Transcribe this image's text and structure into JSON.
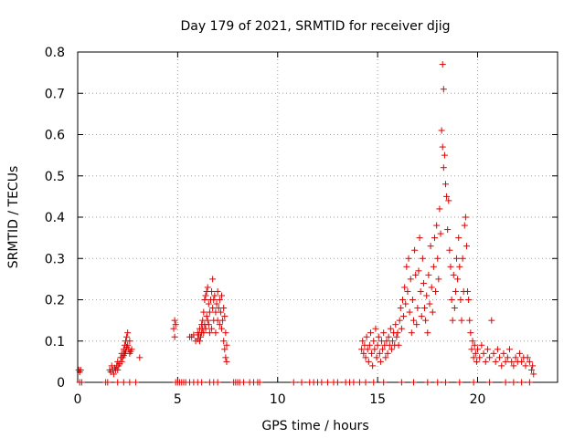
{
  "chart_data": {
    "type": "scatter",
    "title": "Day 179 of 2021, SRMTID for receiver djig",
    "xlabel": "GPS time / hours",
    "ylabel": "SRMTID / TECUs",
    "xlim": [
      0,
      24
    ],
    "ylim": [
      0,
      0.8
    ],
    "grid": true,
    "x_ticks": [
      "0",
      "5",
      "10",
      "15",
      "20"
    ],
    "x_tick_values": [
      0,
      5,
      10,
      15,
      20
    ],
    "y_ticks": [
      "0",
      "0.1",
      "0.2",
      "0.3",
      "0.4",
      "0.5",
      "0.6",
      "0.7",
      "0.8"
    ],
    "y_tick_values": [
      0,
      0.1,
      0.2,
      0.3,
      0.4,
      0.5,
      0.6,
      0.7,
      0.8
    ],
    "marker": "+",
    "color": "#dd0000",
    "series": [
      {
        "name": "SRMTID",
        "points": [
          [
            0.05,
            0.03
          ],
          [
            0.1,
            0.025
          ],
          [
            0.15,
            0.03
          ],
          [
            0.1,
            0.0
          ],
          [
            0.2,
            0.0
          ],
          [
            1.4,
            0.0
          ],
          [
            1.5,
            0.0
          ],
          [
            1.6,
            0.03
          ],
          [
            1.65,
            0.025
          ],
          [
            1.7,
            0.04
          ],
          [
            1.75,
            0.03
          ],
          [
            1.8,
            0.02
          ],
          [
            1.85,
            0.035
          ],
          [
            1.9,
            0.03
          ],
          [
            1.95,
            0.04
          ],
          [
            2.0,
            0.03
          ],
          [
            2.0,
            0.05
          ],
          [
            2.05,
            0.04
          ],
          [
            2.1,
            0.045
          ],
          [
            2.15,
            0.06
          ],
          [
            2.2,
            0.05
          ],
          [
            2.2,
            0.07
          ],
          [
            2.25,
            0.06
          ],
          [
            2.3,
            0.08
          ],
          [
            2.3,
            0.065
          ],
          [
            2.35,
            0.09
          ],
          [
            2.35,
            0.07
          ],
          [
            2.4,
            0.1
          ],
          [
            2.4,
            0.075
          ],
          [
            2.45,
            0.11
          ],
          [
            2.45,
            0.085
          ],
          [
            2.5,
            0.12
          ],
          [
            2.5,
            0.09
          ],
          [
            2.55,
            0.08
          ],
          [
            2.6,
            0.07
          ],
          [
            2.6,
            0.1
          ],
          [
            2.65,
            0.075
          ],
          [
            2.7,
            0.08
          ],
          [
            2.9,
            0.0
          ],
          [
            3.1,
            0.06
          ],
          [
            2.0,
            0.0
          ],
          [
            2.3,
            0.0
          ],
          [
            2.6,
            0.0
          ],
          [
            4.8,
            0.13
          ],
          [
            4.85,
            0.15
          ],
          [
            4.9,
            0.14
          ],
          [
            4.85,
            0.11
          ],
          [
            5.3,
            0.0
          ],
          [
            4.9,
            0.0
          ],
          [
            5.0,
            0.0
          ],
          [
            5.1,
            0.0
          ],
          [
            5.2,
            0.0
          ],
          [
            5.4,
            0.0
          ],
          [
            5.6,
            0.0
          ],
          [
            5.8,
            0.0
          ],
          [
            6.0,
            0.0
          ],
          [
            6.2,
            0.0
          ],
          [
            6.6,
            0.0
          ],
          [
            6.8,
            0.0
          ],
          [
            7.0,
            0.0
          ],
          [
            5.6,
            0.11
          ],
          [
            5.7,
            0.11
          ],
          [
            5.8,
            0.115
          ],
          [
            5.9,
            0.1
          ],
          [
            6.0,
            0.12
          ],
          [
            6.0,
            0.105
          ],
          [
            6.05,
            0.115
          ],
          [
            6.1,
            0.13
          ],
          [
            6.1,
            0.1
          ],
          [
            6.15,
            0.11
          ],
          [
            6.2,
            0.12
          ],
          [
            6.2,
            0.14
          ],
          [
            6.25,
            0.15
          ],
          [
            6.25,
            0.13
          ],
          [
            6.3,
            0.17
          ],
          [
            6.3,
            0.12
          ],
          [
            6.35,
            0.2
          ],
          [
            6.35,
            0.14
          ],
          [
            6.4,
            0.21
          ],
          [
            6.4,
            0.13
          ],
          [
            6.45,
            0.22
          ],
          [
            6.45,
            0.16
          ],
          [
            6.5,
            0.23
          ],
          [
            6.5,
            0.15
          ],
          [
            6.55,
            0.19
          ],
          [
            6.55,
            0.14
          ],
          [
            6.6,
            0.17
          ],
          [
            6.6,
            0.12
          ],
          [
            6.65,
            0.2
          ],
          [
            6.7,
            0.22
          ],
          [
            6.7,
            0.13
          ],
          [
            6.75,
            0.25
          ],
          [
            6.75,
            0.18
          ],
          [
            6.8,
            0.2
          ],
          [
            6.8,
            0.15
          ],
          [
            6.85,
            0.21
          ],
          [
            6.9,
            0.17
          ],
          [
            6.9,
            0.12
          ],
          [
            6.95,
            0.19
          ],
          [
            7.0,
            0.22
          ],
          [
            7.0,
            0.15
          ],
          [
            7.05,
            0.18
          ],
          [
            7.1,
            0.2
          ],
          [
            7.1,
            0.14
          ],
          [
            7.15,
            0.17
          ],
          [
            7.2,
            0.21
          ],
          [
            7.2,
            0.13
          ],
          [
            7.25,
            0.15
          ],
          [
            7.3,
            0.18
          ],
          [
            7.3,
            0.1
          ],
          [
            7.35,
            0.16
          ],
          [
            7.35,
            0.08
          ],
          [
            7.4,
            0.12
          ],
          [
            7.4,
            0.06
          ],
          [
            7.45,
            0.09
          ],
          [
            7.45,
            0.05
          ],
          [
            7.8,
            0.0
          ],
          [
            7.9,
            0.0
          ],
          [
            8.0,
            0.0
          ],
          [
            8.1,
            0.0
          ],
          [
            8.3,
            0.0
          ],
          [
            8.6,
            0.0
          ],
          [
            8.8,
            0.0
          ],
          [
            9.0,
            0.0
          ],
          [
            9.1,
            0.0
          ],
          [
            10.8,
            0.0
          ],
          [
            11.2,
            0.0
          ],
          [
            11.6,
            0.0
          ],
          [
            11.8,
            0.0
          ],
          [
            12.0,
            0.0
          ],
          [
            12.2,
            0.0
          ],
          [
            12.5,
            0.0
          ],
          [
            12.8,
            0.0
          ],
          [
            13.0,
            0.0
          ],
          [
            13.4,
            0.0
          ],
          [
            13.6,
            0.0
          ],
          [
            13.8,
            0.0
          ],
          [
            14.1,
            0.0
          ],
          [
            14.2,
            0.08
          ],
          [
            14.25,
            0.1
          ],
          [
            14.3,
            0.07
          ],
          [
            14.35,
            0.09
          ],
          [
            14.4,
            0.06
          ],
          [
            14.45,
            0.11
          ],
          [
            14.5,
            0.08
          ],
          [
            14.55,
            0.05
          ],
          [
            14.6,
            0.09
          ],
          [
            14.65,
            0.12
          ],
          [
            14.7,
            0.07
          ],
          [
            14.75,
            0.04
          ],
          [
            14.8,
            0.1
          ],
          [
            14.85,
            0.08
          ],
          [
            14.9,
            0.13
          ],
          [
            14.95,
            0.06
          ],
          [
            15.0,
            0.09
          ],
          [
            15.05,
            0.11
          ],
          [
            15.1,
            0.07
          ],
          [
            15.15,
            0.05
          ],
          [
            15.2,
            0.1
          ],
          [
            15.25,
            0.08
          ],
          [
            15.3,
            0.12
          ],
          [
            15.35,
            0.09
          ],
          [
            15.4,
            0.06
          ],
          [
            15.45,
            0.1
          ],
          [
            15.5,
            0.07
          ],
          [
            15.55,
            0.11
          ],
          [
            15.6,
            0.09
          ],
          [
            15.65,
            0.13
          ],
          [
            15.7,
            0.08
          ],
          [
            15.75,
            0.1
          ],
          [
            15.8,
            0.12
          ],
          [
            15.85,
            0.09
          ],
          [
            15.9,
            0.14
          ],
          [
            15.95,
            0.11
          ],
          [
            16.0,
            0.12
          ],
          [
            16.05,
            0.09
          ],
          [
            16.1,
            0.15
          ],
          [
            16.15,
            0.18
          ],
          [
            16.2,
            0.13
          ],
          [
            16.25,
            0.2
          ],
          [
            16.3,
            0.16
          ],
          [
            16.35,
            0.23
          ],
          [
            16.4,
            0.19
          ],
          [
            16.45,
            0.28
          ],
          [
            16.5,
            0.22
          ],
          [
            16.55,
            0.3
          ],
          [
            16.6,
            0.17
          ],
          [
            16.65,
            0.25
          ],
          [
            16.7,
            0.12
          ],
          [
            16.75,
            0.2
          ],
          [
            16.8,
            0.15
          ],
          [
            16.85,
            0.32
          ],
          [
            16.9,
            0.26
          ],
          [
            16.95,
            0.14
          ],
          [
            17.0,
            0.18
          ],
          [
            17.05,
            0.27
          ],
          [
            17.1,
            0.35
          ],
          [
            17.15,
            0.22
          ],
          [
            17.2,
            0.16
          ],
          [
            17.25,
            0.3
          ],
          [
            17.3,
            0.24
          ],
          [
            17.35,
            0.18
          ],
          [
            17.4,
            0.15
          ],
          [
            17.45,
            0.21
          ],
          [
            17.5,
            0.12
          ],
          [
            17.55,
            0.26
          ],
          [
            17.6,
            0.19
          ],
          [
            17.65,
            0.33
          ],
          [
            17.7,
            0.23
          ],
          [
            17.75,
            0.17
          ],
          [
            17.8,
            0.28
          ],
          [
            17.85,
            0.35
          ],
          [
            17.9,
            0.22
          ],
          [
            17.95,
            0.38
          ],
          [
            18.0,
            0.3
          ],
          [
            18.05,
            0.25
          ],
          [
            18.1,
            0.42
          ],
          [
            18.15,
            0.36
          ],
          [
            18.2,
            0.61
          ],
          [
            18.25,
            0.57
          ],
          [
            18.25,
            0.77
          ],
          [
            18.3,
            0.71
          ],
          [
            18.3,
            0.52
          ],
          [
            18.35,
            0.55
          ],
          [
            18.4,
            0.48
          ],
          [
            18.45,
            0.45
          ],
          [
            18.5,
            0.37
          ],
          [
            18.55,
            0.44
          ],
          [
            18.6,
            0.32
          ],
          [
            18.65,
            0.28
          ],
          [
            18.7,
            0.2
          ],
          [
            18.75,
            0.15
          ],
          [
            18.8,
            0.26
          ],
          [
            18.85,
            0.18
          ],
          [
            18.9,
            0.22
          ],
          [
            18.95,
            0.3
          ],
          [
            19.0,
            0.25
          ],
          [
            19.05,
            0.35
          ],
          [
            19.1,
            0.28
          ],
          [
            19.15,
            0.2
          ],
          [
            19.2,
            0.15
          ],
          [
            19.25,
            0.3
          ],
          [
            19.3,
            0.22
          ],
          [
            19.35,
            0.38
          ],
          [
            19.4,
            0.4
          ],
          [
            19.45,
            0.33
          ],
          [
            19.5,
            0.22
          ],
          [
            19.55,
            0.2
          ],
          [
            19.6,
            0.15
          ],
          [
            19.65,
            0.12
          ],
          [
            19.7,
            0.08
          ],
          [
            19.75,
            0.1
          ],
          [
            19.8,
            0.06
          ],
          [
            19.85,
            0.09
          ],
          [
            19.9,
            0.07
          ],
          [
            19.95,
            0.05
          ],
          [
            20.0,
            0.08
          ],
          [
            20.1,
            0.06
          ],
          [
            20.2,
            0.09
          ],
          [
            20.3,
            0.07
          ],
          [
            20.4,
            0.05
          ],
          [
            20.5,
            0.08
          ],
          [
            20.6,
            0.06
          ],
          [
            20.7,
            0.15
          ],
          [
            20.8,
            0.07
          ],
          [
            20.9,
            0.05
          ],
          [
            21.0,
            0.08
          ],
          [
            21.1,
            0.06
          ],
          [
            21.2,
            0.04
          ],
          [
            21.3,
            0.07
          ],
          [
            21.4,
            0.05
          ],
          [
            21.5,
            0.06
          ],
          [
            21.6,
            0.08
          ],
          [
            21.7,
            0.05
          ],
          [
            21.8,
            0.04
          ],
          [
            21.9,
            0.06
          ],
          [
            22.0,
            0.05
          ],
          [
            22.1,
            0.07
          ],
          [
            22.2,
            0.05
          ],
          [
            22.3,
            0.06
          ],
          [
            22.4,
            0.04
          ],
          [
            22.5,
            0.06
          ],
          [
            22.6,
            0.05
          ],
          [
            22.7,
            0.03
          ],
          [
            22.75,
            0.04
          ],
          [
            22.8,
            0.02
          ],
          [
            14.4,
            0.0
          ],
          [
            14.8,
            0.0
          ],
          [
            15.3,
            0.0
          ],
          [
            16.2,
            0.0
          ],
          [
            16.8,
            0.0
          ],
          [
            17.5,
            0.0
          ],
          [
            18.0,
            0.0
          ],
          [
            18.4,
            0.0
          ],
          [
            19.1,
            0.0
          ],
          [
            19.8,
            0.0
          ],
          [
            20.6,
            0.0
          ],
          [
            21.4,
            0.0
          ],
          [
            21.8,
            0.0
          ],
          [
            22.2,
            0.0
          ],
          [
            22.6,
            0.0
          ]
        ]
      }
    ]
  }
}
